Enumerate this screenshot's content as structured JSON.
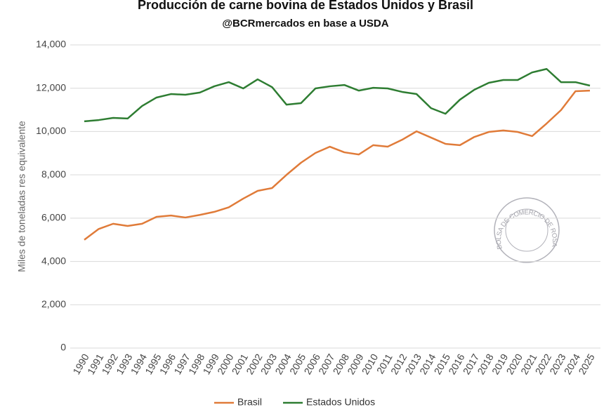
{
  "chart_data": {
    "type": "line",
    "title": "Producción de carne bovina de Estados Unidos y Brasil",
    "subtitle": "@BCRmercados en base a USDA",
    "y_label": "Miles de toneladas res equivalente",
    "annotation": "BOLSA DE COMERCIO DE ROSARIO",
    "categories": [
      "1990",
      "1991",
      "1992",
      "1993",
      "1994",
      "1995",
      "1996",
      "1997",
      "1998",
      "1999",
      "2000",
      "2001",
      "2002",
      "2003",
      "2004",
      "2005",
      "2006",
      "2007",
      "2008",
      "2009",
      "2010",
      "2011",
      "2012",
      "2013",
      "2014",
      "2015",
      "2016",
      "2017",
      "2018",
      "2019",
      "2020",
      "2021",
      "2022",
      "2023",
      "2024",
      "2025"
    ],
    "series": [
      {
        "name": "Brasil",
        "color": "#e07b39",
        "values": [
          5000,
          5500,
          5740,
          5640,
          5740,
          6060,
          6120,
          6030,
          6150,
          6290,
          6500,
          6900,
          7260,
          7390,
          8000,
          8560,
          9010,
          9300,
          9040,
          8940,
          9370,
          9300,
          9620,
          10010,
          9720,
          9430,
          9370,
          9750,
          9980,
          10050,
          9980,
          9790,
          10370,
          10990,
          11860,
          11890
        ]
      },
      {
        "name": "Estados Unidos",
        "color": "#2e7d32",
        "values": [
          10470,
          10530,
          10630,
          10600,
          11180,
          11570,
          11730,
          11700,
          11800,
          12090,
          12280,
          11990,
          12410,
          12050,
          11240,
          11310,
          11990,
          12090,
          12150,
          11890,
          12020,
          11990,
          11830,
          11730,
          11080,
          10820,
          11470,
          11930,
          12250,
          12380,
          12380,
          12730,
          12890,
          12280,
          12280,
          12120
        ]
      }
    ],
    "ylim": [
      0,
      14000
    ],
    "yticks": [
      0,
      {
        "value": 2000,
        "label": "2,000"
      },
      {
        "value": 4000,
        "label": "4,000"
      },
      {
        "value": 6000,
        "label": "6,000"
      },
      {
        "value": 8000,
        "label": "8,000"
      },
      {
        "value": 10000,
        "label": "10,000"
      },
      {
        "value": 12000,
        "label": "12,000"
      },
      {
        "value": 14000,
        "label": "14,000"
      }
    ],
    "grid": true,
    "legend": "bottom"
  }
}
